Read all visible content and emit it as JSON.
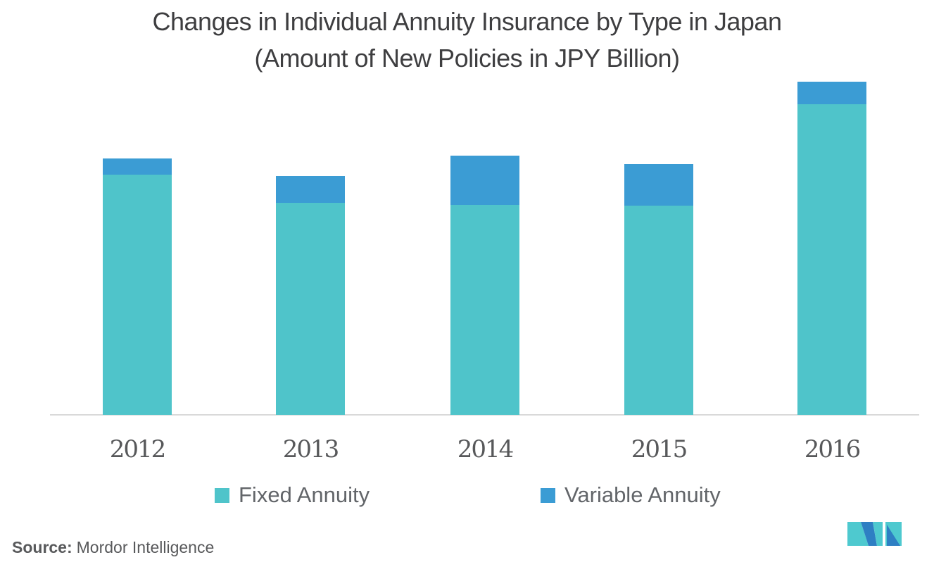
{
  "title": {
    "line1": "Changes in Individual Annuity Insurance by Type in Japan",
    "line2": "(Amount of New Policies in JPY Billion)"
  },
  "chart_data": {
    "type": "bar",
    "stacked": true,
    "title": "Changes in Individual Annuity Insurance by Type in Japan (Amount of New Policies in JPY Billion)",
    "categories": [
      "2012",
      "2013",
      "2014",
      "2015",
      "2016"
    ],
    "series": [
      {
        "name": "Fixed Annuity",
        "color": "#4FC4CA",
        "values": [
          341,
          301,
          298,
          297,
          441
        ]
      },
      {
        "name": "Variable Annuity",
        "color": "#3B9CD4",
        "values": [
          23,
          38,
          70,
          59,
          32
        ]
      }
    ],
    "xlabel": "",
    "ylabel": "",
    "ylim": [
      0,
      520
    ],
    "grid": false,
    "axis_ticks_shown": false,
    "legend_position": "bottom"
  },
  "legend": {
    "items": [
      {
        "label": "Fixed Annuity",
        "color": "#4FC4CA"
      },
      {
        "label": "Variable Annuity",
        "color": "#3B9CD4"
      }
    ]
  },
  "source": {
    "label": "Source:",
    "text": "Mordor Intelligence"
  },
  "logo": {
    "name": "mordor-intelligence-logo",
    "teal": "#4EC9CF",
    "blue": "#2E7FC3"
  }
}
